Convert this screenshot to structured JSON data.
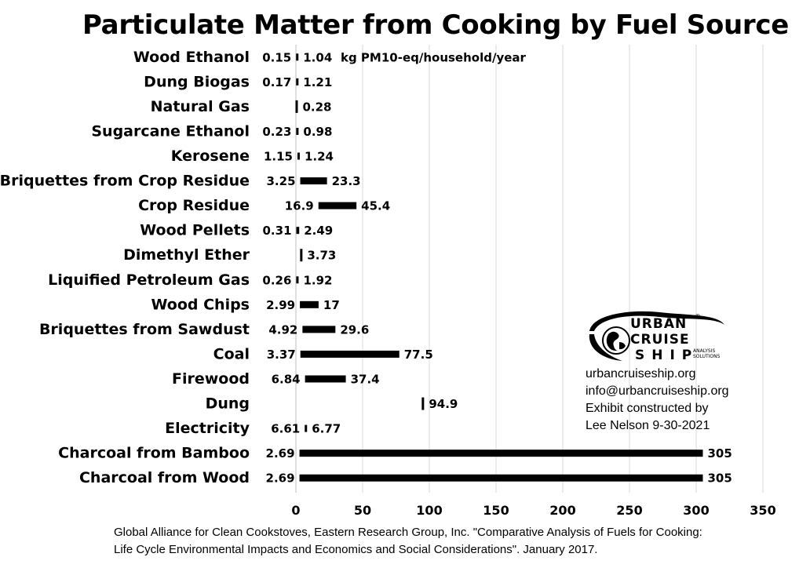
{
  "chart_data": {
    "type": "bar",
    "orientation": "horizontal-range",
    "title": "Particulate Matter from Cooking by Fuel Source",
    "unit_annotation": "kg PM10-eq/household/year",
    "categories": [
      "Wood Ethanol",
      "Dung Biogas",
      "Natural Gas",
      "Sugarcane Ethanol",
      "Kerosene",
      "Briquettes from Crop Residue",
      "Crop Residue",
      "Wood Pellets",
      "Dimethyl Ether",
      "Liquified Petroleum Gas",
      "Wood Chips",
      "Briquettes from Sawdust",
      "Coal",
      "Firewood",
      "Dung",
      "Electricity",
      "Charcoal from Bamboo",
      "Charcoal from Wood"
    ],
    "series": [
      {
        "values": [
          0.15,
          0.17,
          null,
          0.23,
          1.15,
          3.25,
          16.9,
          0.31,
          null,
          0.26,
          2.99,
          4.92,
          3.37,
          6.84,
          null,
          6.61,
          2.69,
          2.69
        ]
      },
      {
        "values": [
          1.04,
          1.21,
          0.28,
          0.98,
          1.24,
          23.3,
          45.4,
          2.49,
          3.73,
          1.92,
          17,
          29.6,
          77.5,
          37.4,
          94.9,
          6.77,
          305,
          305
        ]
      }
    ],
    "low_labels": [
      "0.15",
      "0.17",
      "",
      "0.23",
      "1.15",
      "3.25",
      "16.9",
      "0.31",
      "",
      "0.26",
      "2.99",
      "4.92",
      "3.37",
      "6.84",
      "",
      "6.61",
      "2.69",
      "2.69"
    ],
    "high_labels": [
      "1.04",
      "1.21",
      "0.28",
      "0.98",
      "1.24",
      "23.3",
      "45.4",
      "2.49",
      "3.73",
      "1.92",
      "17",
      "29.6",
      "77.5",
      "37.4",
      "94.9",
      "6.77",
      "305",
      "305"
    ],
    "x_ticks": [
      "0",
      "50",
      "100",
      "150",
      "200",
      "250",
      "300",
      "350"
    ],
    "xlim": [
      0,
      350
    ],
    "grid": true,
    "colors": {
      "bar": "#000000",
      "grid": "#d9d9d9"
    }
  },
  "logo": {
    "line1": "URBAN",
    "line2": "CRUISE",
    "line3": "SHIP",
    "small1": "ANALYSIS",
    "small2": "SOLUTIONS",
    "registered": "®"
  },
  "contact": {
    "website": "urbancruiseship.org",
    "email": "info@urbancruiseship.org",
    "credit_line1": "Exhibit constructed by",
    "credit_line2": "Lee Nelson 9-30-2021"
  },
  "source": {
    "line1": "Global Alliance for Clean Cookstoves, Eastern Research Group, Inc. \"Comparative Analysis of Fuels for Cooking:",
    "line2": "Life Cycle Environmental Impacts and Economics and Social Considerations\". January 2017."
  }
}
